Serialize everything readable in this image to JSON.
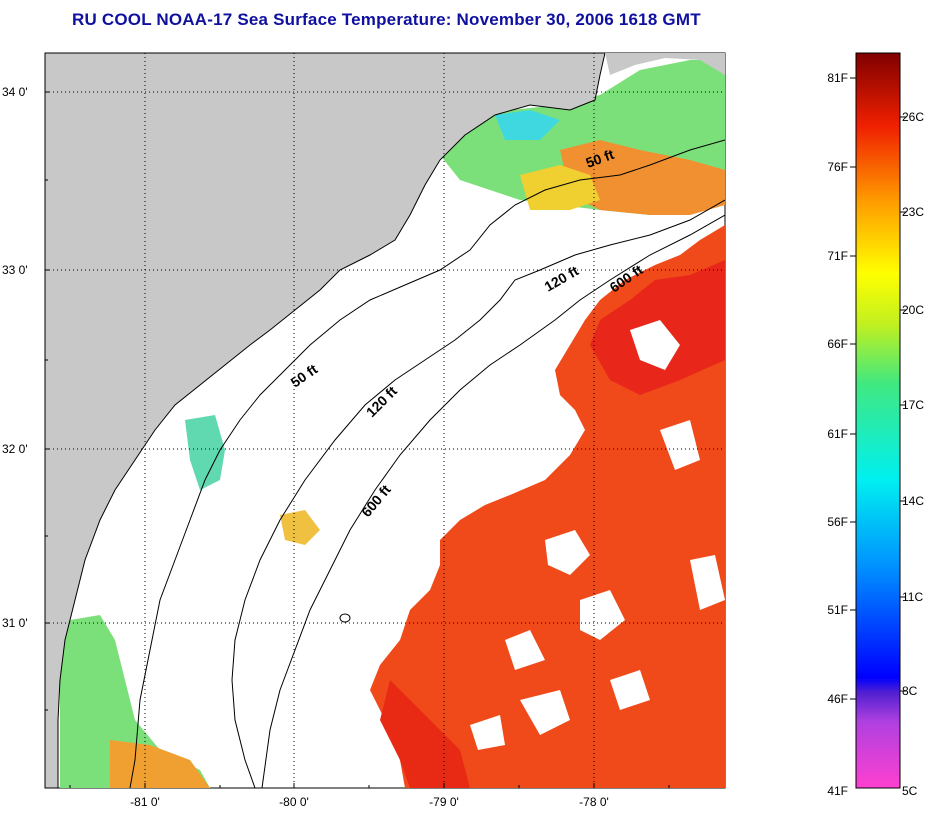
{
  "title": "RU COOL  NOAA-17  Sea Surface Temperature:  November 30, 2006 1618 GMT",
  "map": {
    "lat_labels": [
      "34 0'",
      "33 0'",
      "32 0'",
      "31 0'"
    ],
    "lon_labels": [
      "-81 0'",
      "-80 0'",
      "-79 0'",
      "-78 0'"
    ],
    "contour_labels": {
      "c50_north": "50 ft",
      "c50_south": "50 ft",
      "c120_north": "120 ft",
      "c120_south": "120 ft",
      "c600_north": "600 ft",
      "c600_south": "600 ft"
    },
    "colors": {
      "land": "#c8c8c8",
      "cloud": "#ffffff",
      "warm": "#f04a1a",
      "warm_hot": "#e82a14",
      "cool_green": "#7ce07a",
      "cool_cyan": "#40e0d0",
      "yellow": "#f0d030",
      "blue": "#1a40d0"
    }
  },
  "colorbar": {
    "f_labels": [
      "81F",
      "76F",
      "71F",
      "66F",
      "61F",
      "56F",
      "51F",
      "46F",
      "41F"
    ],
    "c_labels": [
      "26C",
      "23C",
      "20C",
      "17C",
      "14C",
      "11C",
      "8C",
      "5C"
    ]
  }
}
